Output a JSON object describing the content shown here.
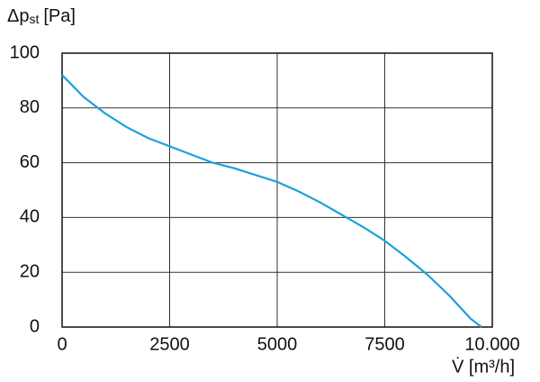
{
  "chart_data": {
    "type": "line",
    "y_label": {
      "symbol": "Δp",
      "subscript": "st",
      "unit": "[Pa]"
    },
    "x_label": "V̇ [m³/h]",
    "x": [
      0,
      500,
      1000,
      1500,
      2000,
      2500,
      3000,
      3500,
      4000,
      4500,
      5000,
      5500,
      6000,
      6500,
      7000,
      7500,
      8000,
      8500,
      9000,
      9500,
      9750
    ],
    "values": [
      92,
      84,
      78,
      73,
      69,
      66,
      63,
      60,
      58,
      55.5,
      53,
      49.5,
      45.5,
      41,
      36.5,
      31.5,
      25.5,
      19,
      11.5,
      3,
      0
    ],
    "color": "#1ba1dc",
    "xlim": [
      0,
      10000
    ],
    "xticks": [
      0,
      2500,
      5000,
      7500,
      {
        "value": 10000,
        "label": "10.000"
      }
    ],
    "ylim": [
      0,
      100
    ],
    "yticks": [
      0,
      20,
      40,
      60,
      80,
      100
    ],
    "grid": true
  }
}
